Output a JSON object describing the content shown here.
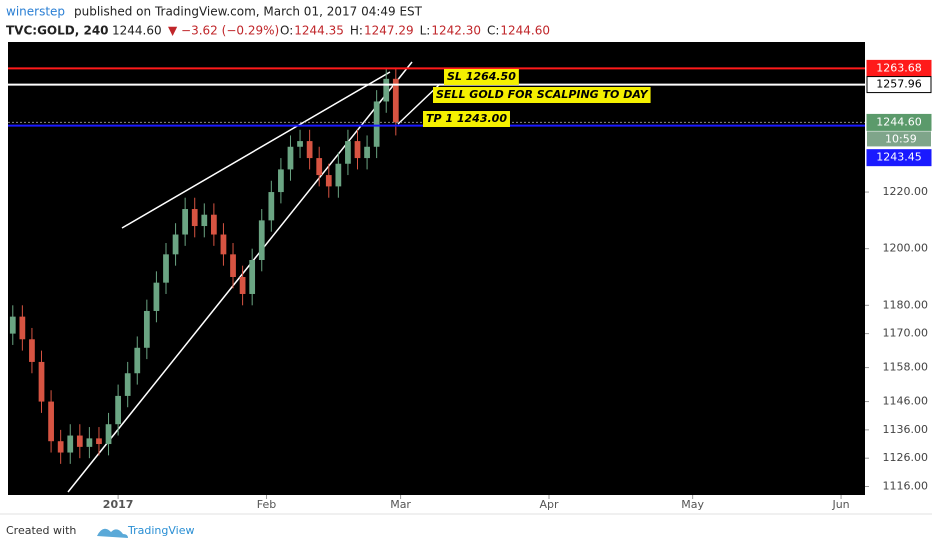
{
  "header": {
    "author": "winerstep",
    "published": "published on TradingView.com, March 01, 2017 04:49 EST",
    "symbol": "TVC:GOLD, 240",
    "last": "1244.60",
    "change": "▼ −3.62 (−0.29%)",
    "ohlc": [
      {
        "key": "O:",
        "value": "1244.35"
      },
      {
        "key": "H:",
        "value": "1247.29"
      },
      {
        "key": "L:",
        "value": "1242.30"
      },
      {
        "key": "C:",
        "value": "1244.60"
      }
    ]
  },
  "footer": {
    "created": "Created with",
    "brand": "TradingView"
  },
  "chart_data": {
    "type": "candlestick",
    "x": [
      -22,
      -20,
      -18,
      -16,
      -14,
      -12,
      -10,
      -8,
      -6,
      -4,
      -2,
      0,
      2,
      4,
      6,
      8,
      10,
      12,
      14,
      16,
      18,
      20,
      22,
      24,
      26,
      28,
      30,
      32,
      34,
      36,
      38,
      40,
      42,
      44,
      46,
      48,
      50,
      52,
      54,
      56,
      58
    ],
    "open": [
      1170,
      1176,
      1168,
      1160,
      1146,
      1132,
      1128,
      1134,
      1130,
      1133,
      1131,
      1138,
      1148,
      1156,
      1165,
      1178,
      1188,
      1198,
      1205,
      1214,
      1208,
      1212,
      1205,
      1198,
      1190,
      1184,
      1196,
      1210,
      1220,
      1228,
      1236,
      1238,
      1232,
      1226,
      1222,
      1230,
      1238,
      1232,
      1236,
      1252,
      1260
    ],
    "high": [
      1180,
      1180,
      1172,
      1164,
      1150,
      1136,
      1138,
      1138,
      1137,
      1137,
      1142,
      1152,
      1160,
      1169,
      1182,
      1192,
      1202,
      1209,
      1218,
      1218,
      1216,
      1216,
      1209,
      1202,
      1194,
      1200,
      1214,
      1224,
      1232,
      1240,
      1242,
      1242,
      1236,
      1230,
      1234,
      1242,
      1242,
      1240,
      1256,
      1264,
      1264
    ],
    "low": [
      1166,
      1164,
      1156,
      1142,
      1128,
      1124,
      1124,
      1126,
      1126,
      1127,
      1127,
      1134,
      1144,
      1152,
      1161,
      1174,
      1184,
      1194,
      1201,
      1204,
      1204,
      1201,
      1194,
      1186,
      1180,
      1180,
      1192,
      1206,
      1216,
      1224,
      1232,
      1228,
      1222,
      1218,
      1218,
      1226,
      1228,
      1228,
      1232,
      1248,
      1240
    ],
    "close": [
      1176,
      1168,
      1160,
      1146,
      1132,
      1128,
      1134,
      1130,
      1133,
      1131,
      1138,
      1148,
      1156,
      1165,
      1178,
      1188,
      1198,
      1205,
      1214,
      1208,
      1212,
      1205,
      1198,
      1190,
      1184,
      1196,
      1210,
      1220,
      1228,
      1236,
      1238,
      1232,
      1226,
      1222,
      1230,
      1238,
      1232,
      1236,
      1252,
      1260,
      1244.6
    ],
    "up_color": "#6ba583",
    "down_color": "#d75442",
    "xlim": [
      -23,
      156
    ],
    "xticks": [
      {
        "value": 0,
        "label": "2017"
      },
      {
        "value": 31,
        "label": "Feb"
      },
      {
        "value": 59,
        "label": "Mar"
      },
      {
        "value": 90,
        "label": "Apr"
      },
      {
        "value": 120,
        "label": "May"
      },
      {
        "value": 151,
        "label": "Jun"
      }
    ],
    "ylim": [
      1113,
      1273
    ],
    "yticks": [
      {
        "value": 1116,
        "label": "1116.00"
      },
      {
        "value": 1126,
        "label": "1126.00"
      },
      {
        "value": 1136,
        "label": "1136.00"
      },
      {
        "value": 1146,
        "label": "1146.00"
      },
      {
        "value": 1158,
        "label": "1158.00"
      },
      {
        "value": 1170,
        "label": "1170.00"
      },
      {
        "value": 1180,
        "label": "1180.00"
      },
      {
        "value": 1200,
        "label": "1200.00"
      },
      {
        "value": 1220,
        "label": "1220.00"
      }
    ],
    "levels": [
      {
        "value": 1263.68,
        "label": "1263.68",
        "color": "#ff1a1a"
      },
      {
        "value": 1257.96,
        "label": "1257.96",
        "color": "#ffffff"
      },
      {
        "value": 1244.6,
        "label": "1244.60",
        "color": "#5b9a6b",
        "countdown": "10:59"
      },
      {
        "value": 1243.45,
        "label": "1243.45",
        "color": "#1a1aff"
      }
    ],
    "annotations": [
      "SL 1264.50",
      "SELL GOLD FOR SCALPING TO DAY",
      "TP 1 1243.00"
    ]
  }
}
